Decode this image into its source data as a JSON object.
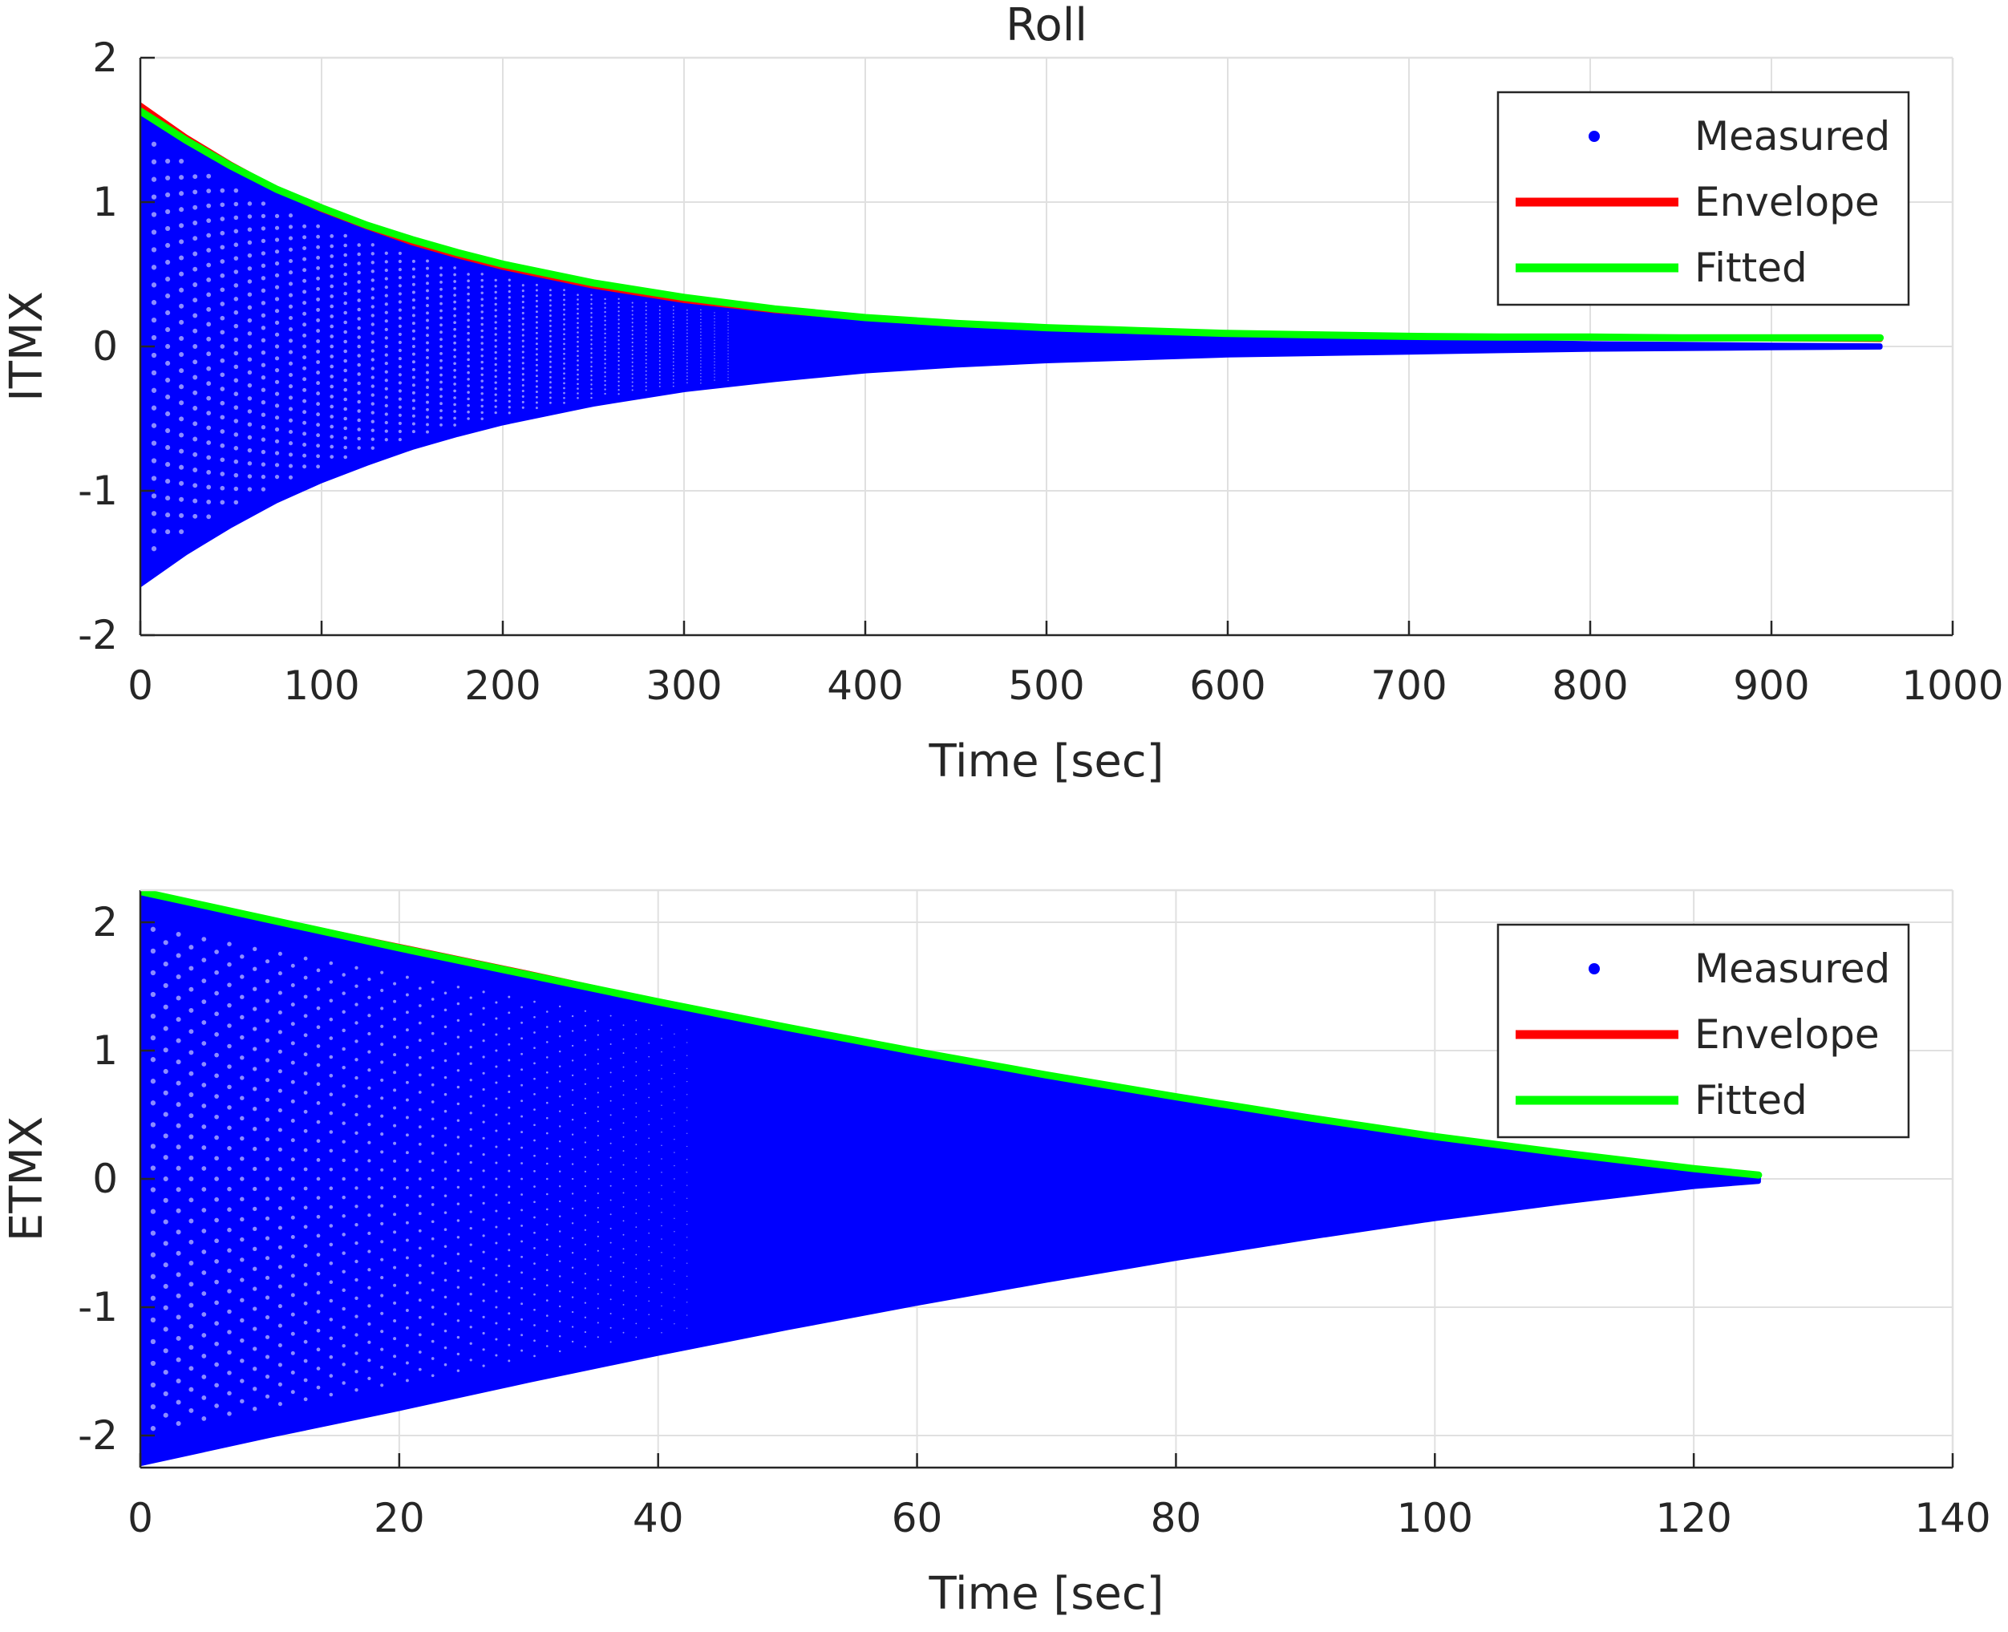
{
  "figure": {
    "title": "Roll"
  },
  "chart_data": [
    {
      "type": "line",
      "title": "Roll",
      "xlabel": "Time [sec]",
      "ylabel": "ITMX",
      "xlim": [
        0,
        1000
      ],
      "ylim": [
        -2,
        2
      ],
      "xticks": [
        0,
        100,
        200,
        300,
        400,
        500,
        600,
        700,
        800,
        900,
        1000
      ],
      "yticks": [
        -2,
        -1,
        0,
        1,
        2
      ],
      "grid": true,
      "legend_position": "top-right",
      "series": [
        {
          "name": "Measured",
          "style": "dots",
          "color": "#0000ff",
          "x": [
            0,
            25,
            50,
            75,
            100,
            125,
            150,
            175,
            200,
            250,
            300,
            350,
            400,
            450,
            500,
            550,
            600,
            650,
            700,
            750,
            800,
            850,
            900,
            960
          ],
          "upper": [
            1.65,
            1.43,
            1.24,
            1.07,
            0.93,
            0.81,
            0.7,
            0.61,
            0.53,
            0.4,
            0.3,
            0.23,
            0.17,
            0.13,
            0.1,
            0.08,
            0.06,
            0.05,
            0.04,
            0.03,
            0.02,
            0.015,
            0.01,
            0.005
          ],
          "lower": [
            -1.65,
            -1.43,
            -1.24,
            -1.07,
            -0.93,
            -0.81,
            -0.7,
            -0.61,
            -0.53,
            -0.4,
            -0.3,
            -0.23,
            -0.17,
            -0.13,
            -0.1,
            -0.08,
            -0.06,
            -0.05,
            -0.04,
            -0.03,
            -0.02,
            -0.015,
            -0.01,
            -0.005
          ]
        },
        {
          "name": "Envelope",
          "style": "line",
          "color": "#ff0000",
          "x": [
            0,
            25,
            50,
            75,
            100,
            125,
            150,
            175,
            200,
            250,
            300,
            350,
            400,
            450,
            500,
            550,
            600,
            650,
            700,
            750,
            800,
            850,
            900,
            960
          ],
          "y": [
            1.67,
            1.45,
            1.26,
            1.09,
            0.95,
            0.83,
            0.72,
            0.63,
            0.55,
            0.42,
            0.32,
            0.25,
            0.2,
            0.16,
            0.13,
            0.11,
            0.09,
            0.08,
            0.07,
            0.065,
            0.06,
            0.06,
            0.055,
            0.05
          ]
        },
        {
          "name": "Fitted",
          "style": "line",
          "color": "#00ff00",
          "x": [
            0,
            25,
            50,
            75,
            100,
            125,
            150,
            175,
            200,
            250,
            300,
            350,
            400,
            450,
            500,
            550,
            600,
            650,
            700,
            750,
            800,
            850,
            900,
            960
          ],
          "y": [
            1.63,
            1.43,
            1.25,
            1.09,
            0.96,
            0.84,
            0.74,
            0.65,
            0.57,
            0.44,
            0.34,
            0.26,
            0.2,
            0.16,
            0.13,
            0.11,
            0.09,
            0.08,
            0.07,
            0.065,
            0.065,
            0.06,
            0.06,
            0.06
          ]
        }
      ]
    },
    {
      "type": "line",
      "title": "",
      "xlabel": "Time [sec]",
      "ylabel": "ETMX",
      "xlim": [
        0,
        140
      ],
      "ylim": [
        -2.25,
        2.25
      ],
      "xticks": [
        0,
        20,
        40,
        60,
        80,
        100,
        120,
        140
      ],
      "yticks": [
        -2,
        -1,
        0,
        1,
        2
      ],
      "grid": true,
      "legend_position": "top-right",
      "series": [
        {
          "name": "Measured",
          "style": "dots",
          "color": "#0000ff",
          "x": [
            0,
            10,
            20,
            30,
            40,
            50,
            60,
            70,
            80,
            90,
            100,
            110,
            120,
            125
          ],
          "upper": [
            2.22,
            2.0,
            1.79,
            1.57,
            1.36,
            1.16,
            0.97,
            0.79,
            0.62,
            0.46,
            0.31,
            0.18,
            0.06,
            0.02
          ],
          "lower": [
            -2.22,
            -2.0,
            -1.79,
            -1.57,
            -1.36,
            -1.16,
            -0.97,
            -0.79,
            -0.62,
            -0.46,
            -0.31,
            -0.18,
            -0.06,
            -0.02
          ]
        },
        {
          "name": "Envelope",
          "style": "line",
          "color": "#ff0000",
          "x": [
            0,
            10,
            20,
            30,
            40,
            50,
            60,
            70,
            80,
            90,
            100,
            110,
            120,
            125
          ],
          "y": [
            2.24,
            2.02,
            1.81,
            1.6,
            1.38,
            1.18,
            0.99,
            0.81,
            0.64,
            0.48,
            0.33,
            0.2,
            0.08,
            0.03
          ]
        },
        {
          "name": "Fitted",
          "style": "line",
          "color": "#00ff00",
          "x": [
            0,
            10,
            20,
            30,
            40,
            50,
            60,
            70,
            80,
            90,
            100,
            110,
            120,
            125
          ],
          "y": [
            2.24,
            2.02,
            1.8,
            1.59,
            1.38,
            1.18,
            0.99,
            0.81,
            0.64,
            0.48,
            0.33,
            0.2,
            0.08,
            0.03
          ]
        }
      ]
    }
  ]
}
